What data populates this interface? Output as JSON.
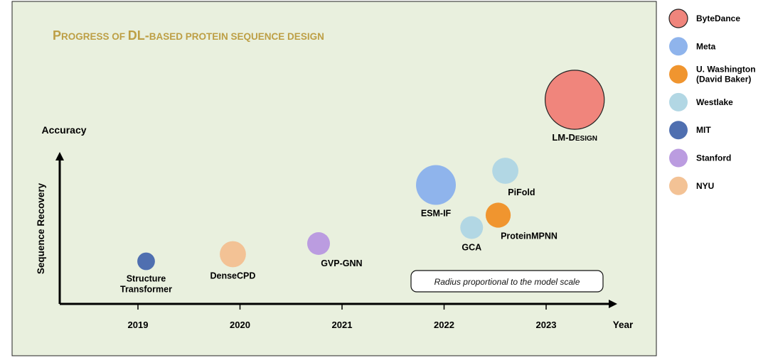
{
  "chart_data": {
    "type": "scatter",
    "title_parts": [
      {
        "text": "P",
        "big": true
      },
      {
        "text": "ROGRESS OF ",
        "big": false
      },
      {
        "text": "DL-",
        "big": true
      },
      {
        "text": "BASED PROTEIN SEQUENCE DESIGN",
        "big": false
      }
    ],
    "ylabel": "Sequence Recovery",
    "ytitle": "Accuracy",
    "xlabel": "Year",
    "x_ticks": [
      2019,
      2020,
      2021,
      2022,
      2023
    ],
    "xlim": [
      2018,
      2023.5
    ],
    "note": "Radius proportional to the model scale",
    "points": [
      {
        "label": [
          "Structure",
          "Transformer"
        ],
        "org": "MIT",
        "x": 2019.08,
        "y": 0.24,
        "r": 0.055,
        "label_pos": "below"
      },
      {
        "label": [
          "DenseCPD"
        ],
        "org": "NYU",
        "x": 2019.93,
        "y": 0.28,
        "r": 0.13,
        "label_pos": "below"
      },
      {
        "label": [
          "GVP-GNN"
        ],
        "org": "Stanford",
        "x": 2020.77,
        "y": 0.34,
        "r": 0.1,
        "label_pos": "below-right"
      },
      {
        "label": [
          "ESM-IF"
        ],
        "org": "Meta",
        "x": 2021.92,
        "y": 0.67,
        "r": 0.25,
        "label_pos": "below"
      },
      {
        "label": [
          "GCA"
        ],
        "org": "Westlake",
        "x": 2022.27,
        "y": 0.43,
        "r": 0.1,
        "label_pos": "below"
      },
      {
        "label": [
          "ProteinMPNN"
        ],
        "org": "U. Washington (David Baker)",
        "x": 2022.53,
        "y": 0.5,
        "r": 0.12,
        "label_pos": "below-right"
      },
      {
        "label": [
          "PiFold"
        ],
        "org": "Westlake",
        "x": 2022.6,
        "y": 0.75,
        "r": 0.13,
        "label_pos": "below-right"
      },
      {
        "label_parts": [
          {
            "text": "LM-D",
            "big": true
          },
          {
            "text": "ESIGN",
            "big": false
          }
        ],
        "org": "ByteDance",
        "x": 2023.28,
        "y": 1.15,
        "r": 0.42,
        "label_pos": "below"
      }
    ],
    "legend": [
      {
        "name": "ByteDance",
        "color": "#f0857c"
      },
      {
        "name": "Meta",
        "color": "#8fb4ec"
      },
      {
        "name": "U. Washington\n(David Baker)",
        "color": "#f0952f"
      },
      {
        "name": "Westlake",
        "color": "#b2d7e4"
      },
      {
        "name": "MIT",
        "color": "#4f6fb0"
      },
      {
        "name": "Stanford",
        "color": "#bb9ce0"
      },
      {
        "name": "NYU",
        "color": "#f3c295"
      }
    ],
    "legend_placement": "right",
    "grid": false,
    "colors": {
      "panel_bg": "#e9f0de",
      "title": "#bd9f45",
      "ink": "#000000"
    }
  }
}
